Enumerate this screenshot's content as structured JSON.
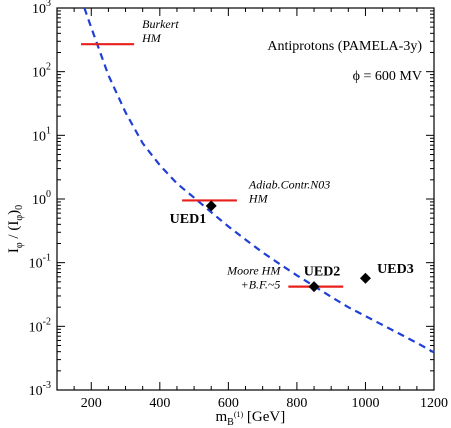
{
  "chart_data": {
    "type": "scatter",
    "title": "",
    "xlabel": "m_B(1) [GeV]",
    "xlabel_parts": {
      "main": "m",
      "sub": "B",
      "sup": "(1)",
      "unit": " [GeV]"
    },
    "ylabel": "I_φ / (I_φ)_0",
    "ylabel_parts": {
      "a": "I",
      "a_sub": "φ",
      "b": " / (I",
      "b_sub": "φ",
      "c": ")",
      "c_sub": "0"
    },
    "xlim": [
      100,
      1200
    ],
    "ylim_log10": [
      -3,
      3
    ],
    "yscale": "log",
    "grid": false,
    "x_ticks": [
      200,
      400,
      600,
      800,
      1000,
      1200
    ],
    "x_tick_labels": [
      "200",
      "400",
      "600",
      "800",
      "1000",
      "1200"
    ],
    "y_tick_labels": [
      {
        "base": "10",
        "exp": "-3"
      },
      {
        "base": "10",
        "exp": "-2"
      },
      {
        "base": "10",
        "exp": "-1"
      },
      {
        "base": "10",
        "exp": "0"
      },
      {
        "base": "10",
        "exp": "1"
      },
      {
        "base": "10",
        "exp": "2"
      },
      {
        "base": "10",
        "exp": "3"
      }
    ],
    "legend_text": {
      "line1": "Antiprotons (PAMELA-3y)",
      "line2": "ϕ = 600 MV"
    },
    "curve": {
      "style": "dashed",
      "color": "#1f3fd6",
      "x": [
        180,
        200,
        250,
        300,
        350,
        400,
        450,
        500,
        550,
        600,
        650,
        700,
        750,
        800,
        850,
        900,
        950,
        1000,
        1050,
        1100,
        1150,
        1200
      ],
      "y": [
        1100,
        490,
        88,
        23,
        7.5,
        3.4,
        1.75,
        1.05,
        0.62,
        0.37,
        0.23,
        0.145,
        0.095,
        0.063,
        0.043,
        0.029,
        0.02,
        0.0145,
        0.0105,
        0.0076,
        0.0055,
        0.0039
      ]
    },
    "limits": [
      {
        "x_range": [
          170,
          325
        ],
        "y": 270,
        "label_line1": "Burkert",
        "label_line2": "HM",
        "color": "#e8201c"
      },
      {
        "x_range": [
          465,
          625
        ],
        "y": 0.95,
        "label_line1": "Adiab.Contr.N03",
        "label_line2": "HM",
        "color": "#e8201c"
      },
      {
        "x_range": [
          775,
          935
        ],
        "y": 0.042,
        "label_line1": "Moore HM",
        "label_line2": "+B.F.~5",
        "color": "#e8201c"
      }
    ],
    "points": [
      {
        "name": "UED1",
        "x": 550,
        "y": 0.78
      },
      {
        "name": "UED2",
        "x": 850,
        "y": 0.042
      },
      {
        "name": "UED3",
        "x": 1000,
        "y": 0.057
      }
    ],
    "marker": "diamond",
    "marker_color": "#000000"
  }
}
